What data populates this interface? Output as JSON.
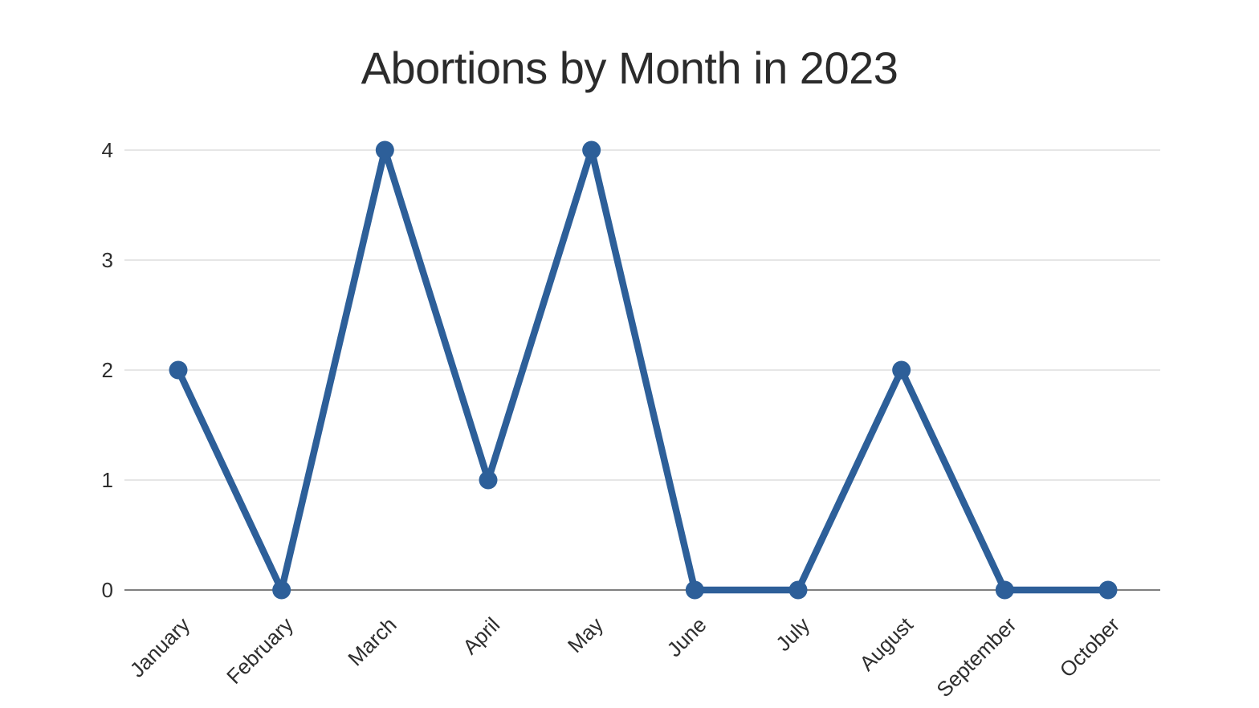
{
  "chart_data": {
    "type": "line",
    "title": "Abortions by Month in 2023",
    "categories": [
      "January",
      "February",
      "March",
      "April",
      "May",
      "June",
      "July",
      "August",
      "September",
      "October"
    ],
    "values": [
      2,
      0,
      4,
      1,
      4,
      0,
      0,
      2,
      0,
      0
    ],
    "xlabel": "",
    "ylabel": "",
    "ylim": [
      0,
      4
    ],
    "yticks": [
      0,
      1,
      2,
      3,
      4
    ],
    "grid": "horizontal",
    "legend": "none",
    "marker": "circle"
  },
  "colors": {
    "background": "#ffffff",
    "series_line": "#2d5f99",
    "marker_fill": "#2d5f99",
    "gridline": "#cdcdcd",
    "zero_axis": "#7f7f7f",
    "tick_text": "#2e2e2e",
    "title_text": "#2b2b2b"
  }
}
